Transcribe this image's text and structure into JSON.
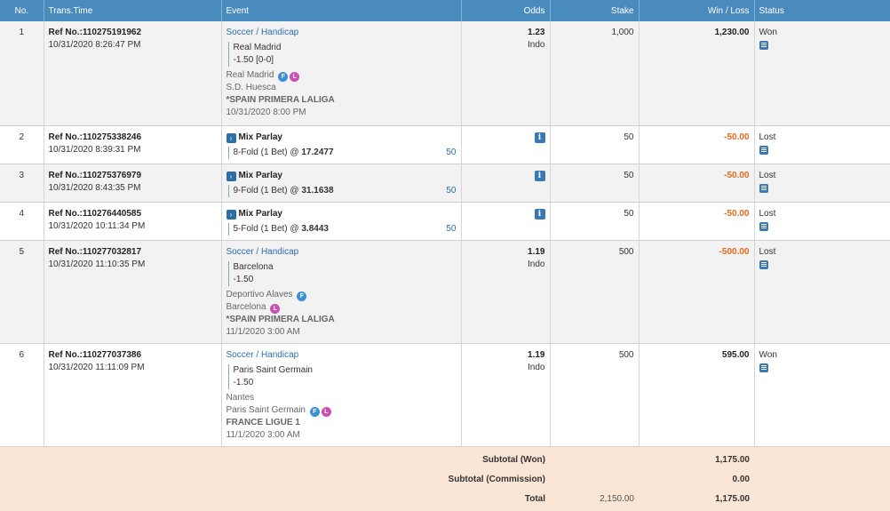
{
  "headers": {
    "no": "No.",
    "trans_time": "Trans.Time",
    "event": "Event",
    "odds": "Odds",
    "stake": "Stake",
    "win_loss": "Win / Loss",
    "status": "Status"
  },
  "bets": [
    {
      "no": "1",
      "ref": "Ref No.:110275191962",
      "time": "10/31/2020 8:26:47 PM",
      "sport": "Soccer / Handicap",
      "selection": "Real Madrid",
      "handicap": "-1.50",
      "score": "[0-0]",
      "home": "Real Madrid",
      "away": "S.D. Huesca",
      "league": "*SPAIN PRIMERA LALIGA",
      "date": "10/31/2020 8:00 PM",
      "odds": "1.23",
      "odds_type": "Indo",
      "stake": "1,000",
      "result": "1,230.00",
      "status": "Won"
    },
    {
      "no": "2",
      "ref": "Ref No.:110275338246",
      "time": "10/31/2020 8:39:31 PM",
      "parlay": "Mix Parlay",
      "fold": "8-Fold (1 Bet)",
      "at": "@",
      "fold_odds": "17.2477",
      "fold_stake": "50",
      "stake": "50",
      "result": "-50.00",
      "status": "Lost"
    },
    {
      "no": "3",
      "ref": "Ref No.:110275376979",
      "time": "10/31/2020 8:43:35 PM",
      "parlay": "Mix Parlay",
      "fold": "9-Fold (1 Bet)",
      "at": "@",
      "fold_odds": "31.1638",
      "fold_stake": "50",
      "stake": "50",
      "result": "-50.00",
      "status": "Lost"
    },
    {
      "no": "4",
      "ref": "Ref No.:110276440585",
      "time": "10/31/2020 10:11:34 PM",
      "parlay": "Mix Parlay",
      "fold": "5-Fold (1 Bet)",
      "at": "@",
      "fold_odds": "3.8443",
      "fold_stake": "50",
      "stake": "50",
      "result": "-50.00",
      "status": "Lost"
    },
    {
      "no": "5",
      "ref": "Ref No.:110277032817",
      "time": "10/31/2020 11:10:35 PM",
      "sport": "Soccer / Handicap",
      "selection": "Barcelona",
      "handicap": "-1.50",
      "home": "Deportivo Alaves",
      "away": "Barcelona",
      "league": "*SPAIN PRIMERA LALIGA",
      "date": "11/1/2020 3:00 AM",
      "odds": "1.19",
      "odds_type": "Indo",
      "stake": "500",
      "result": "-500.00",
      "status": "Lost"
    },
    {
      "no": "6",
      "ref": "Ref No.:110277037386",
      "time": "10/31/2020 11:11:09 PM",
      "sport": "Soccer / Handicap",
      "selection": "Paris Saint Germain",
      "handicap": "-1.50",
      "home": "Nantes",
      "away": "Paris Saint Germain",
      "league": "FRANCE LIGUE 1",
      "date": "11/1/2020 3:00 AM",
      "odds": "1.19",
      "odds_type": "Indo",
      "stake": "500",
      "result": "595.00",
      "status": "Won"
    }
  ],
  "badges": {
    "f": "F",
    "l": "L"
  },
  "icons": {
    "info": "i",
    "chevron": "›"
  },
  "summary": {
    "won_label": "Subtotal (Won)",
    "won_value": "1,175.00",
    "commission_label": "Subtotal (Commission)",
    "commission_value": "0.00",
    "total_label": "Total",
    "total_stake": "2,150.00",
    "total_value": "1,175.00"
  },
  "colors": {
    "header_bg": "#4a8bbd",
    "loss": "#e06a1b",
    "summary_bg": "#fbe6d5",
    "link": "#2c6ea8"
  }
}
